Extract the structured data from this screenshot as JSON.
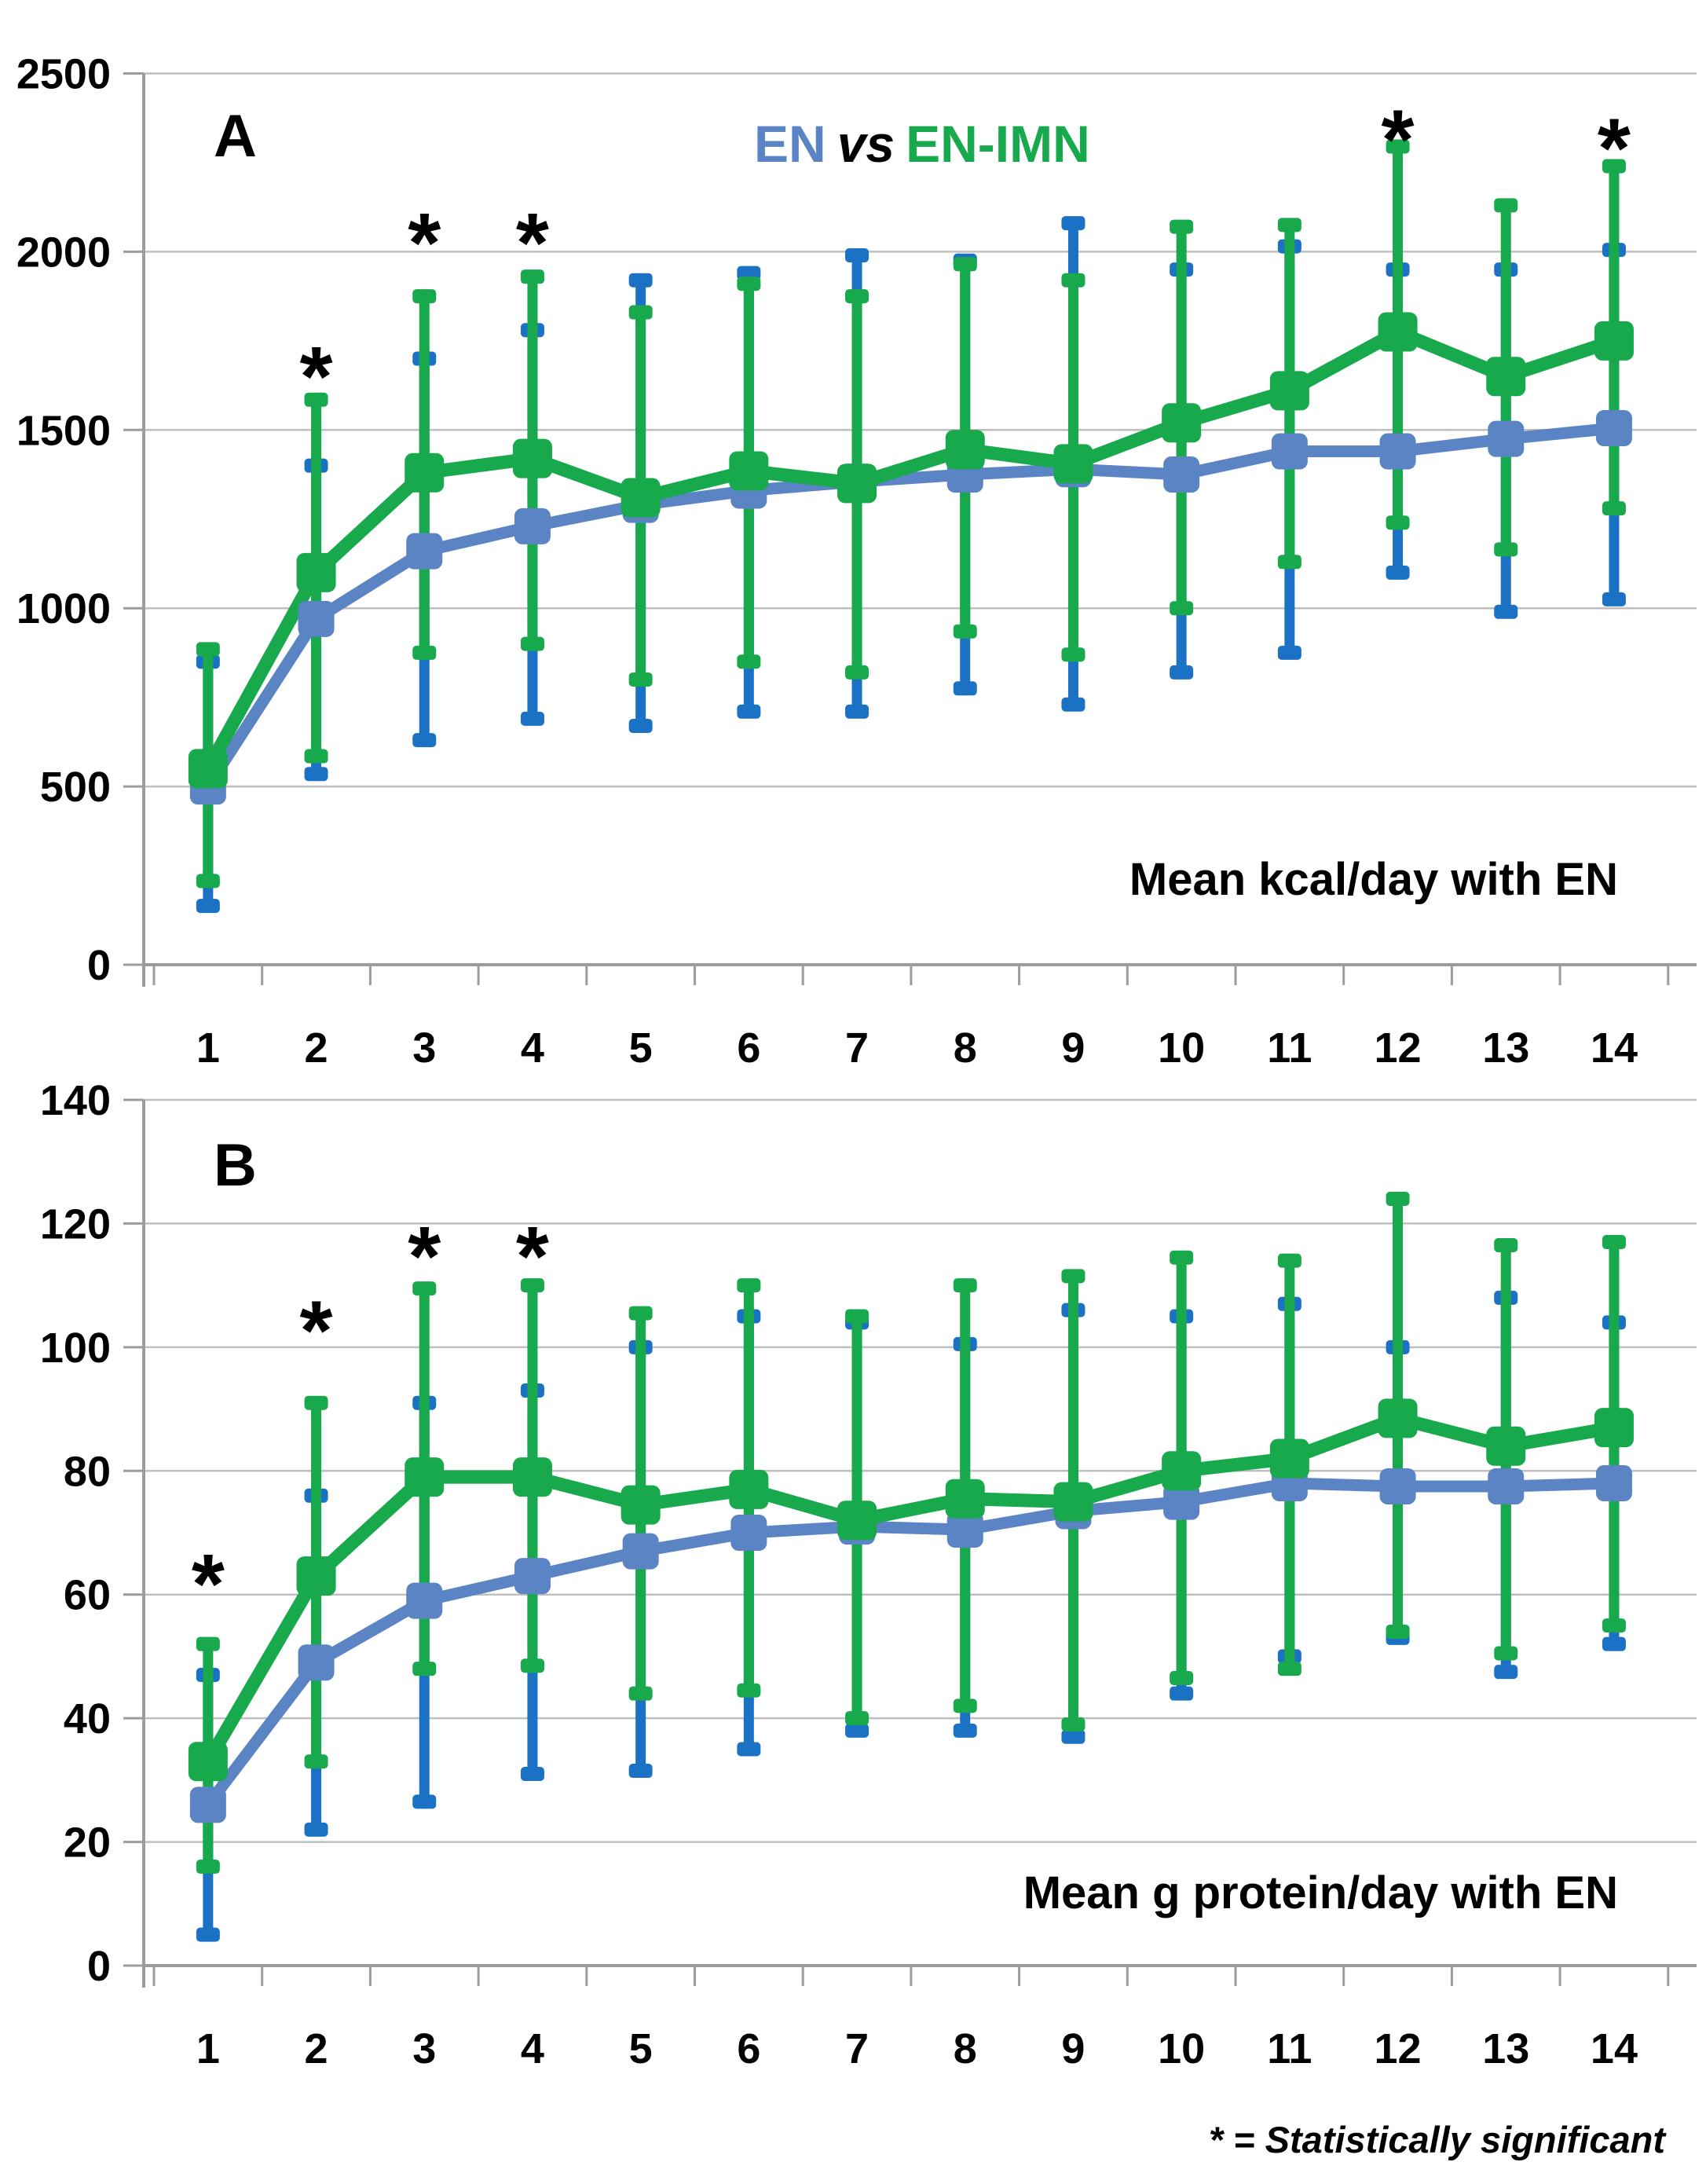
{
  "legend": {
    "series1": "EN",
    "vs": "vs",
    "series2": "EN-IMN"
  },
  "footnote": "* = Statistically significant",
  "colors": {
    "en_line": "#5B84C4",
    "en_error": "#1B72C4",
    "imn_line": "#17A94C",
    "imn_error": "#17A94C",
    "grid": "#BFBFBF",
    "axis": "#9C9C9C",
    "text": "#000000",
    "legend_en": "#5B84C4",
    "legend_imn": "#17A94C"
  },
  "chart_data": [
    {
      "type": "line",
      "panel_label": "A",
      "title": "Mean kcal/day with EN",
      "categories": [
        1,
        2,
        3,
        4,
        5,
        6,
        7,
        8,
        9,
        10,
        11,
        12,
        13,
        14
      ],
      "xlabel": "",
      "ylabel": "kcal/day",
      "ylim": [
        0,
        2500
      ],
      "yticks": [
        0,
        500,
        1000,
        1500,
        2000,
        2500
      ],
      "grid": true,
      "legend_position": "top-center",
      "series": [
        {
          "name": "EN",
          "line_color": "#5B84C4",
          "error_color": "#1B72C4",
          "values": [
            500,
            970,
            1160,
            1230,
            1290,
            1330,
            1355,
            1375,
            1390,
            1375,
            1440,
            1440,
            1475,
            1505
          ],
          "err_low": [
            165,
            535,
            630,
            690,
            670,
            710,
            710,
            775,
            730,
            820,
            875,
            1100,
            990,
            1025
          ],
          "err_high": [
            850,
            1400,
            1700,
            1780,
            1920,
            1940,
            1990,
            1975,
            2080,
            1950,
            2015,
            1950,
            1950,
            2005
          ]
        },
        {
          "name": "EN-IMN",
          "line_color": "#17A94C",
          "error_color": "#17A94C",
          "values": [
            550,
            1100,
            1380,
            1420,
            1310,
            1385,
            1350,
            1445,
            1405,
            1520,
            1610,
            1775,
            1650,
            1750
          ],
          "err_low": [
            235,
            585,
            875,
            900,
            800,
            850,
            820,
            935,
            870,
            1000,
            1130,
            1240,
            1165,
            1280
          ],
          "err_high": [
            885,
            1585,
            1875,
            1930,
            1830,
            1910,
            1875,
            1965,
            1920,
            2070,
            2075,
            2295,
            2130,
            2240
          ]
        }
      ],
      "significance": [
        {
          "day": 2,
          "y": 1690
        },
        {
          "day": 3,
          "y": 2065
        },
        {
          "day": 4,
          "y": 2065
        },
        {
          "day": 12,
          "y": 2355
        },
        {
          "day": 14,
          "y": 2330
        }
      ]
    },
    {
      "type": "line",
      "panel_label": "B",
      "title": "Mean g protein/day with EN",
      "categories": [
        1,
        2,
        3,
        4,
        5,
        6,
        7,
        8,
        9,
        10,
        11,
        12,
        13,
        14
      ],
      "xlabel": "",
      "ylabel": "g protein/day",
      "ylim": [
        0,
        140
      ],
      "yticks": [
        0,
        20,
        40,
        60,
        80,
        100,
        120,
        140
      ],
      "grid": true,
      "series": [
        {
          "name": "EN",
          "line_color": "#5B84C4",
          "error_color": "#1B72C4",
          "values": [
            26,
            49,
            59,
            63,
            67,
            70,
            71,
            70.5,
            73.5,
            75,
            78,
            77.5,
            77.5,
            78
          ],
          "err_low": [
            5,
            22,
            26.5,
            31,
            31.5,
            35,
            38,
            38,
            37,
            44,
            50,
            53,
            47.5,
            52
          ],
          "err_high": [
            47,
            76,
            91,
            93,
            100,
            105,
            104,
            100.5,
            106,
            105,
            107,
            100,
            108,
            104
          ]
        },
        {
          "name": "EN-IMN",
          "line_color": "#17A94C",
          "error_color": "#17A94C",
          "values": [
            33,
            63,
            79,
            79,
            74.5,
            77,
            72,
            75.5,
            75,
            80,
            82,
            88.5,
            84,
            87
          ],
          "err_low": [
            16,
            33,
            48,
            48.5,
            44,
            44.5,
            40,
            42,
            39,
            46.5,
            48,
            54,
            50.5,
            55
          ],
          "err_high": [
            52,
            91,
            109.5,
            110,
            105.5,
            110,
            105,
            110,
            111.5,
            114.5,
            114,
            124,
            116.5,
            117
          ]
        }
      ],
      "significance": [
        {
          "day": 1,
          "y": 64
        },
        {
          "day": 2,
          "y": 105
        },
        {
          "day": 3,
          "y": 117
        },
        {
          "day": 4,
          "y": 117
        }
      ]
    }
  ]
}
